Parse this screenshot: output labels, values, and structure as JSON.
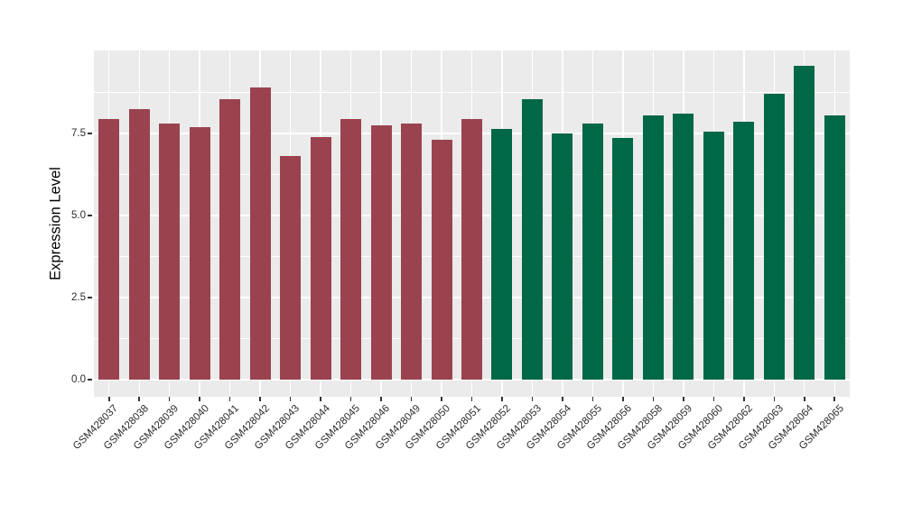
{
  "figure": {
    "background": "#FFFFFF",
    "panel_background": "#EBEBEB",
    "grid_color": "#FFFFFF",
    "axis_text_color": "#2B2B2B",
    "tick_color": "#333333"
  },
  "chart_data": {
    "type": "bar",
    "title": "",
    "xlabel": "",
    "ylabel": "Expression Level",
    "ylim": [
      0,
      10
    ],
    "grid": true,
    "legend_position": "none",
    "yticks": [
      0.0,
      2.5,
      5.0,
      7.5
    ],
    "ytick_labels": [
      "0.0",
      "2.5",
      "5.0",
      "7.5"
    ],
    "minor_yticks": [
      1.25,
      3.75,
      6.25,
      8.75
    ],
    "categories": [
      "GSM428037",
      "GSM428038",
      "GSM428039",
      "GSM428040",
      "GSM428041",
      "GSM428042",
      "GSM428043",
      "GSM428044",
      "GSM428045",
      "GSM428046",
      "GSM428049",
      "GSM428050",
      "GSM428051",
      "GSM428052",
      "GSM428053",
      "GSM428054",
      "GSM428055",
      "GSM428056",
      "GSM428058",
      "GSM428059",
      "GSM428060",
      "GSM428062",
      "GSM428063",
      "GSM428064",
      "GSM428065"
    ],
    "values": [
      7.95,
      8.25,
      7.8,
      7.7,
      8.55,
      8.9,
      6.8,
      7.4,
      7.95,
      7.75,
      7.8,
      7.3,
      7.95,
      7.65,
      8.55,
      7.5,
      7.8,
      7.35,
      8.05,
      8.1,
      7.55,
      7.85,
      8.7,
      9.55,
      8.05
    ],
    "groups": [
      "group1",
      "group1",
      "group1",
      "group1",
      "group1",
      "group1",
      "group1",
      "group1",
      "group1",
      "group1",
      "group1",
      "group1",
      "group1",
      "group2",
      "group2",
      "group2",
      "group2",
      "group2",
      "group2",
      "group2",
      "group2",
      "group2",
      "group2",
      "group2",
      "group2"
    ],
    "group_colors": {
      "group1": "#9A434F",
      "group2": "#006747"
    }
  }
}
